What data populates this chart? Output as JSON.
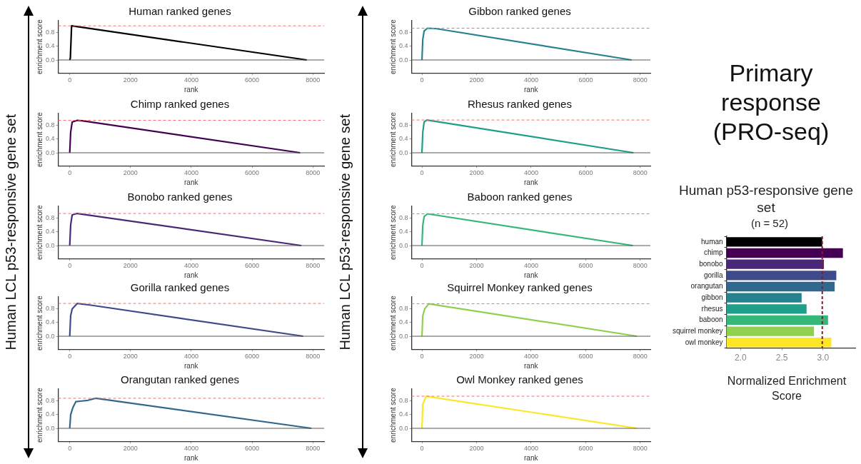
{
  "chart_data": [
    {
      "type": "line",
      "title": "Human ranked genes",
      "xlabel": "rank",
      "ylabel": "enrichment score",
      "x": [
        0,
        20,
        60,
        7800
      ],
      "series": [
        {
          "color": "#000000",
          "values": [
            0,
            0.05,
            1.0,
            0
          ]
        }
      ],
      "xlim": [
        -380,
        8370
      ],
      "ylim": [
        -0.38,
        1.15
      ],
      "xticks": [
        0,
        2000,
        4000,
        6000,
        8000
      ],
      "yticks": [
        {
          "value": 0,
          "label": "0.0"
        },
        {
          "value": 0.4,
          "label": "0.4"
        },
        {
          "value": 0.8,
          "label": "0.8"
        }
      ],
      "ref_lines": [
        {
          "axis": "y",
          "value": 0,
          "color": "#555555",
          "line_style": "solid"
        },
        {
          "axis": "y",
          "value": 1.0,
          "color": "#ff6b6b",
          "line_style": "dashed"
        }
      ]
    },
    {
      "type": "line",
      "title": "Chimp ranked genes",
      "xlabel": "rank",
      "ylabel": "enrichment score",
      "x": [
        0,
        30,
        80,
        250,
        400,
        7580
      ],
      "series": [
        {
          "color": "#440154",
          "values": [
            0,
            0.6,
            0.9,
            0.95,
            0.94,
            0
          ]
        }
      ],
      "xlim": [
        -380,
        8370
      ],
      "ylim": [
        -0.38,
        1.15
      ],
      "xticks": [
        0,
        2000,
        4000,
        6000,
        8000
      ],
      "yticks": [
        {
          "value": 0,
          "label": "0.0"
        },
        {
          "value": 0.4,
          "label": "0.4"
        },
        {
          "value": 0.8,
          "label": "0.8"
        }
      ],
      "ref_lines": [
        {
          "axis": "y",
          "value": 0,
          "color": "#555555",
          "line_style": "solid"
        },
        {
          "axis": "y",
          "value": 0.95,
          "color": "#ff6b6b",
          "line_style": "dashed"
        }
      ]
    },
    {
      "type": "line",
      "title": "Bonobo ranked genes",
      "xlabel": "rank",
      "ylabel": "enrichment score",
      "x": [
        0,
        30,
        80,
        250,
        7620
      ],
      "series": [
        {
          "color": "#482878",
          "values": [
            0,
            0.6,
            0.9,
            0.94,
            0
          ]
        }
      ],
      "xlim": [
        -380,
        8370
      ],
      "ylim": [
        -0.38,
        1.15
      ],
      "xticks": [
        0,
        2000,
        4000,
        6000,
        8000
      ],
      "yticks": [
        {
          "value": 0,
          "label": "0.0"
        },
        {
          "value": 0.4,
          "label": "0.4"
        },
        {
          "value": 0.8,
          "label": "0.8"
        }
      ],
      "ref_lines": [
        {
          "axis": "y",
          "value": 0,
          "color": "#555555",
          "line_style": "solid"
        },
        {
          "axis": "y",
          "value": 0.94,
          "color": "#ff6b6b",
          "line_style": "dashed"
        }
      ]
    },
    {
      "type": "line",
      "title": "Gorilla ranked genes",
      "xlabel": "rank",
      "ylabel": "enrichment score",
      "x": [
        0,
        30,
        80,
        250,
        700,
        7680
      ],
      "series": [
        {
          "color": "#3e4a89",
          "values": [
            0,
            0.6,
            0.8,
            0.96,
            0.91,
            0
          ]
        }
      ],
      "xlim": [
        -380,
        8370
      ],
      "ylim": [
        -0.38,
        1.15
      ],
      "xticks": [
        0,
        2000,
        4000,
        6000,
        8000
      ],
      "yticks": [
        {
          "value": 0,
          "label": "0.0"
        },
        {
          "value": 0.4,
          "label": "0.4"
        },
        {
          "value": 0.8,
          "label": "0.8"
        }
      ],
      "ref_lines": [
        {
          "axis": "y",
          "value": 0,
          "color": "#555555",
          "line_style": "solid"
        },
        {
          "axis": "y",
          "value": 0.96,
          "color": "#ff6b6b",
          "line_style": "dashed"
        }
      ]
    },
    {
      "type": "line",
      "title": "Orangutan ranked genes",
      "xlabel": "rank",
      "ylabel": "enrichment score",
      "x": [
        0,
        30,
        100,
        200,
        400,
        600,
        850,
        7950
      ],
      "series": [
        {
          "color": "#31688e",
          "values": [
            0,
            0.4,
            0.6,
            0.78,
            0.8,
            0.82,
            0.88,
            0
          ]
        }
      ],
      "xlim": [
        -380,
        8370
      ],
      "ylim": [
        -0.38,
        1.15
      ],
      "xticks": [
        0,
        2000,
        4000,
        6000,
        8000
      ],
      "yticks": [
        {
          "value": 0,
          "label": "0.0"
        },
        {
          "value": 0.4,
          "label": "0.4"
        },
        {
          "value": 0.8,
          "label": "0.8"
        }
      ],
      "ref_lines": [
        {
          "axis": "y",
          "value": 0,
          "color": "#555555",
          "line_style": "solid"
        },
        {
          "axis": "y",
          "value": 0.88,
          "color": "#ff6b6b",
          "line_style": "dashed"
        }
      ]
    },
    {
      "type": "line",
      "title": "Gibbon ranked genes",
      "xlabel": "rank",
      "ylabel": "enrichment score",
      "x": [
        0,
        30,
        80,
        200,
        500,
        7680
      ],
      "series": [
        {
          "color": "#26828e",
          "values": [
            0,
            0.6,
            0.85,
            0.93,
            0.92,
            0
          ]
        }
      ],
      "xlim": [
        -380,
        8370
      ],
      "ylim": [
        -0.38,
        1.15
      ],
      "xticks": [
        0,
        2000,
        4000,
        6000,
        8000
      ],
      "yticks": [
        {
          "value": 0,
          "label": "0.0"
        },
        {
          "value": 0.4,
          "label": "0.4"
        },
        {
          "value": 0.8,
          "label": "0.8"
        }
      ],
      "ref_lines": [
        {
          "axis": "y",
          "value": 0,
          "color": "#555555",
          "line_style": "solid"
        },
        {
          "axis": "y",
          "value": 0.93,
          "color": "#ff6b6b",
          "line_style": "dashed"
        }
      ]
    },
    {
      "type": "line",
      "title": "Rhesus ranked genes",
      "xlabel": "rank",
      "ylabel": "enrichment score",
      "x": [
        0,
        30,
        80,
        180,
        7750
      ],
      "series": [
        {
          "color": "#1f9e89",
          "values": [
            0,
            0.6,
            0.9,
            0.96,
            0
          ]
        }
      ],
      "xlim": [
        -380,
        8370
      ],
      "ylim": [
        -0.38,
        1.15
      ],
      "xticks": [
        0,
        2000,
        4000,
        6000,
        8000
      ],
      "yticks": [
        {
          "value": 0,
          "label": "0.0"
        },
        {
          "value": 0.4,
          "label": "0.4"
        },
        {
          "value": 0.8,
          "label": "0.8"
        }
      ],
      "ref_lines": [
        {
          "axis": "y",
          "value": 0,
          "color": "#555555",
          "line_style": "solid"
        },
        {
          "axis": "y",
          "value": 0.96,
          "color": "#ff6b6b",
          "line_style": "dashed"
        }
      ]
    },
    {
      "type": "line",
      "title": "Baboon ranked genes",
      "xlabel": "rank",
      "ylabel": "enrichment score",
      "x": [
        0,
        30,
        80,
        200,
        7730
      ],
      "series": [
        {
          "color": "#35b779",
          "values": [
            0,
            0.6,
            0.85,
            0.93,
            0
          ]
        }
      ],
      "xlim": [
        -380,
        8370
      ],
      "ylim": [
        -0.38,
        1.15
      ],
      "xticks": [
        0,
        2000,
        4000,
        6000,
        8000
      ],
      "yticks": [
        {
          "value": 0,
          "label": "0.0"
        },
        {
          "value": 0.4,
          "label": "0.4"
        },
        {
          "value": 0.8,
          "label": "0.8"
        }
      ],
      "ref_lines": [
        {
          "axis": "y",
          "value": 0,
          "color": "#555555",
          "line_style": "solid"
        },
        {
          "axis": "y",
          "value": 0.93,
          "color": "#ff6b6b",
          "line_style": "dashed"
        }
      ]
    },
    {
      "type": "line",
      "title": "Squirrel Monkey ranked genes",
      "xlabel": "rank",
      "ylabel": "enrichment score",
      "x": [
        0,
        30,
        100,
        250,
        7880
      ],
      "series": [
        {
          "color": "#8fd14f",
          "values": [
            0,
            0.6,
            0.8,
            0.95,
            0
          ]
        }
      ],
      "xlim": [
        -380,
        8370
      ],
      "ylim": [
        -0.38,
        1.15
      ],
      "xticks": [
        0,
        2000,
        4000,
        6000,
        8000
      ],
      "yticks": [
        {
          "value": 0,
          "label": "0.0"
        },
        {
          "value": 0.4,
          "label": "0.4"
        },
        {
          "value": 0.8,
          "label": "0.8"
        }
      ],
      "ref_lines": [
        {
          "axis": "y",
          "value": 0,
          "color": "#555555",
          "line_style": "solid"
        },
        {
          "axis": "y",
          "value": 0.95,
          "color": "#ff6b6b",
          "line_style": "dashed"
        }
      ]
    },
    {
      "type": "line",
      "title": "Owl Monkey ranked genes",
      "xlabel": "rank",
      "ylabel": "enrichment score",
      "x": [
        0,
        30,
        150,
        7880
      ],
      "series": [
        {
          "color": "#fde725",
          "values": [
            0,
            0.7,
            0.94,
            0
          ]
        }
      ],
      "xlim": [
        -380,
        8370
      ],
      "ylim": [
        -0.38,
        1.15
      ],
      "xticks": [
        0,
        2000,
        4000,
        6000,
        8000
      ],
      "yticks": [
        {
          "value": 0,
          "label": "0.0"
        },
        {
          "value": 0.4,
          "label": "0.4"
        },
        {
          "value": 0.8,
          "label": "0.8"
        }
      ],
      "ref_lines": [
        {
          "axis": "y",
          "value": 0,
          "color": "#555555",
          "line_style": "solid"
        },
        {
          "axis": "y",
          "value": 0.94,
          "color": "#ff6b6b",
          "line_style": "dashed"
        }
      ]
    },
    {
      "type": "other",
      "title": "Primary response (PRO-seq)",
      "annotations": [
        "Human LCL p53-responsive gene set",
        "Human LCL p53-responsive gene set"
      ]
    },
    {
      "type": "bar",
      "orientation": "horizontal",
      "title": "Human p53-responsive gene set",
      "subtitle": "(n = 52)",
      "xlabel": "Normalized Enrichment Score",
      "categories": [
        "human",
        "chimp",
        "bonobo",
        "gorilla",
        "orangutan",
        "gibbon",
        "rhesus",
        "baboon",
        "squirrel monkey",
        "owl monkey"
      ],
      "values": [
        2.99,
        3.24,
        3.01,
        3.16,
        3.14,
        2.74,
        2.8,
        3.06,
        2.89,
        3.1
      ],
      "colors": [
        "#000000",
        "#440154",
        "#482878",
        "#3e4a89",
        "#31688e",
        "#26828e",
        "#1f9e89",
        "#35b779",
        "#8fd14f",
        "#fde725"
      ],
      "xlim": [
        1.83,
        3.39
      ],
      "xticks": [
        {
          "value": 2,
          "label": "2.0"
        },
        {
          "value": 2.5,
          "label": "2.5"
        },
        {
          "value": 3,
          "label": "3.0"
        }
      ],
      "ref_lines": [
        {
          "axis": "x",
          "value": 2.99,
          "color": "#8b1a2b",
          "line_style": "dashed"
        }
      ]
    }
  ]
}
